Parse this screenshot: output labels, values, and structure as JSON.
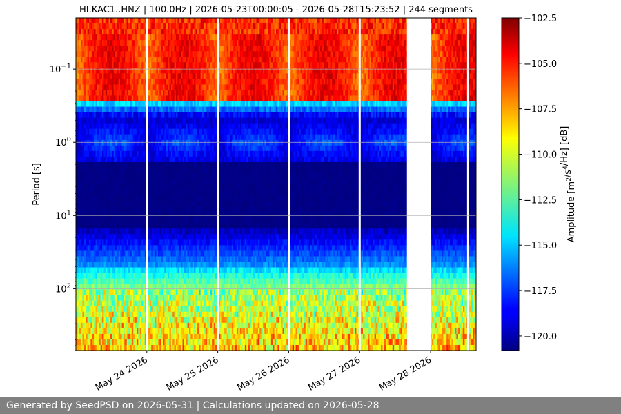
{
  "footer": {
    "text": "Generated by SeedPSD on 2026-05-31 | Calculations updated on 2026-05-28"
  },
  "chart_data": {
    "type": "heatmap",
    "title": "HI.KAC1..HNZ | 100.0Hz | 2026-05-23T00:00:05 - 2026-05-28T15:23:52 | 244 segments",
    "xlabel": "",
    "ylabel": "Period [s]",
    "x_range": [
      "2026-05-23T00:00:05",
      "2026-05-28T15:23:52"
    ],
    "x_ticks": [
      "May 24 2026",
      "May 25 2026",
      "May 26 2026",
      "May 27 2026",
      "May 28 2026"
    ],
    "y_scale": "log",
    "y_inverted": true,
    "y_range": [
      0.02,
      700
    ],
    "y_ticks": [
      {
        "value": 0.1,
        "label": "10^{-1}"
      },
      {
        "value": 1,
        "label": "10^{0}"
      },
      {
        "value": 10,
        "label": "10^{1}"
      },
      {
        "value": 100,
        "label": "10^{2}"
      }
    ],
    "gridlines": "horizontal at y ticks",
    "colormap": "jet",
    "colorbar": {
      "label": "Amplitude [m^2/s^4/Hz] [dB]",
      "range": [
        -120.8,
        -102.5
      ],
      "ticks": [
        -102.5,
        -105.0,
        -107.5,
        -110.0,
        -112.5,
        -115.0,
        -117.5,
        -120.0
      ]
    },
    "segments": 244,
    "data_gaps": [
      {
        "start": "2026-05-23T23:40",
        "end": "2026-05-23T23:55"
      },
      {
        "start": "2026-05-24T23:40",
        "end": "2026-05-24T23:55"
      },
      {
        "start": "2026-05-25T23:40",
        "end": "2026-05-25T23:55"
      },
      {
        "start": "2026-05-26T23:40",
        "end": "2026-05-26T23:55"
      },
      {
        "start": "2026-05-27T16:00",
        "end": "2026-05-28T00:00"
      },
      {
        "start": "2026-05-28T12:20",
        "end": "2026-05-28T12:40"
      }
    ],
    "period_bands": [
      {
        "period": "0.02–0.04 s",
        "amplitude_db": -104
      },
      {
        "period": "0.05–0.25 s",
        "amplitude_db": -104.5
      },
      {
        "period": "0.3–2 s",
        "amplitude_db": -119
      },
      {
        "period": "2–15 s",
        "amplitude_db": -120.5
      },
      {
        "period": "20–60 s",
        "amplitude_db": -115.5
      },
      {
        "period": "60–150 s",
        "amplitude_db": -111
      },
      {
        "period": "150–700 s",
        "amplitude_db": -108
      }
    ]
  },
  "colors": {
    "grid": "#b0b0b0",
    "footer_bg": "#808080",
    "footer_text": "#ffffff"
  }
}
